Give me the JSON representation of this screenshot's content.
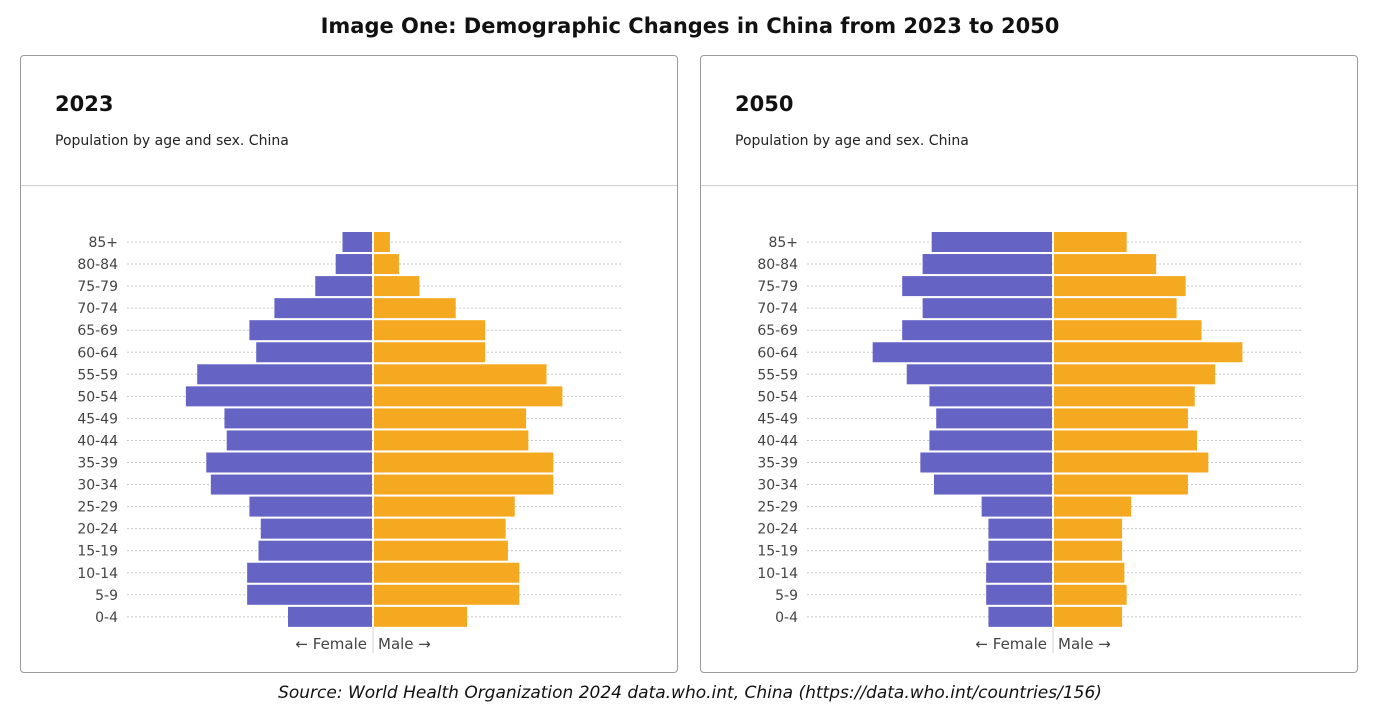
{
  "title": "Image One: Demographic Changes in China from 2023 to 2050",
  "source": "Source: World Health Organization 2024 data.who.int, China (https://data.who.int/countries/156)",
  "colors": {
    "female": "#6563c4",
    "male": "#f5a921",
    "grid": "#c8c8c8",
    "label": "#444444"
  },
  "chart_data": [
    {
      "type": "bar",
      "title": "2023",
      "subtitle": "Population by age and sex. China",
      "xlabel_left": "← Female",
      "xlabel_right": "Male →",
      "categories": [
        "85+",
        "80-84",
        "75-79",
        "70-74",
        "65-69",
        "60-64",
        "55-59",
        "50-54",
        "45-49",
        "40-44",
        "35-39",
        "30-34",
        "25-29",
        "20-24",
        "15-19",
        "10-14",
        "5-9",
        "0-4"
      ],
      "series": [
        {
          "name": "Female",
          "values": [
            1.3,
            1.6,
            2.5,
            4.3,
            5.4,
            5.1,
            7.7,
            8.2,
            6.5,
            6.4,
            7.3,
            7.1,
            5.4,
            4.9,
            5.0,
            5.5,
            5.5,
            3.7
          ]
        },
        {
          "name": "Male",
          "values": [
            0.7,
            1.1,
            2.0,
            3.6,
            4.9,
            4.9,
            7.6,
            8.3,
            6.7,
            6.8,
            7.9,
            7.9,
            6.2,
            5.8,
            5.9,
            6.4,
            6.4,
            4.1
          ]
        }
      ]
    },
    {
      "type": "bar",
      "title": "2050",
      "subtitle": "Population by age and sex. China",
      "xlabel_left": "← Female",
      "xlabel_right": "Male →",
      "categories": [
        "85+",
        "80-84",
        "75-79",
        "70-74",
        "65-69",
        "60-64",
        "55-59",
        "50-54",
        "45-49",
        "40-44",
        "35-39",
        "30-34",
        "25-29",
        "20-24",
        "15-19",
        "10-14",
        "5-9",
        "0-4"
      ],
      "series": [
        {
          "name": "Female",
          "values": [
            5.3,
            5.7,
            6.6,
            5.7,
            6.6,
            7.9,
            6.4,
            5.4,
            5.1,
            5.4,
            5.8,
            5.2,
            3.1,
            2.8,
            2.8,
            2.9,
            2.9,
            2.8
          ]
        },
        {
          "name": "Male",
          "values": [
            3.2,
            4.5,
            5.8,
            5.4,
            6.5,
            8.3,
            7.1,
            6.2,
            5.9,
            6.3,
            6.8,
            5.9,
            3.4,
            3.0,
            3.0,
            3.1,
            3.2,
            3.0
          ]
        }
      ]
    }
  ]
}
